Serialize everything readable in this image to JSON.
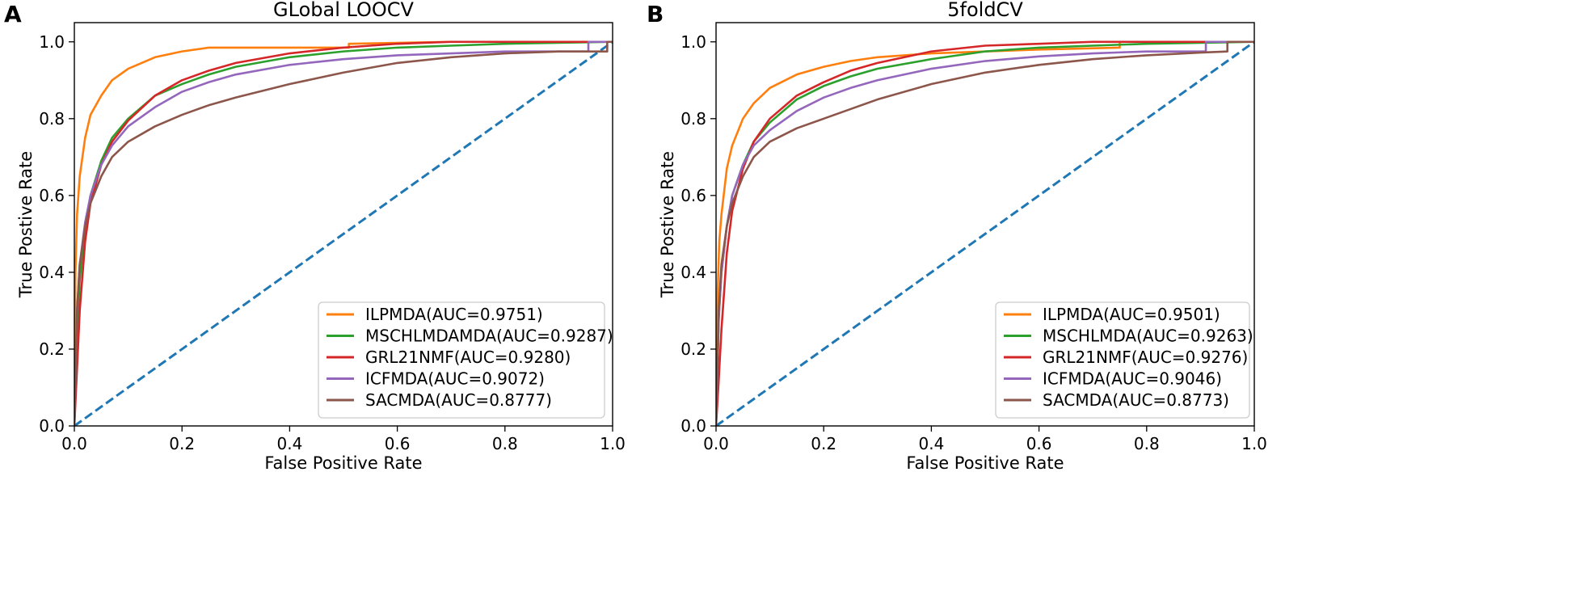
{
  "chart_data": [
    {
      "type": "line",
      "panel_label": "A",
      "title": "GLobal LOOCV",
      "xlabel": "False Positive Rate",
      "ylabel": "True Postive Rate",
      "xlim": [
        0,
        1
      ],
      "ylim": [
        0,
        1.05
      ],
      "xticks": [
        "0.0",
        "0.2",
        "0.4",
        "0.6",
        "0.8",
        "1.0"
      ],
      "yticks": [
        "0.0",
        "0.2",
        "0.4",
        "0.6",
        "0.8",
        "1.0"
      ],
      "legend_position": "lower-right",
      "series": [
        {
          "name": "ILPMDA(AUC=0.9751)",
          "color": "#ff7f0e",
          "x": [
            0,
            0.002,
            0.005,
            0.01,
            0.02,
            0.03,
            0.05,
            0.07,
            0.1,
            0.15,
            0.2,
            0.25,
            0.35,
            0.51,
            0.51,
            0.7,
            1.0
          ],
          "y": [
            0,
            0.4,
            0.55,
            0.65,
            0.75,
            0.81,
            0.86,
            0.9,
            0.93,
            0.96,
            0.975,
            0.985,
            0.985,
            0.985,
            0.995,
            1.0,
            1.0
          ]
        },
        {
          "name": "MSCHLMDAMDA(AUC=0.9287)",
          "color": "#2ca02c",
          "x": [
            0,
            0.005,
            0.01,
            0.02,
            0.03,
            0.05,
            0.07,
            0.1,
            0.15,
            0.2,
            0.25,
            0.3,
            0.4,
            0.5,
            0.6,
            0.7,
            0.8,
            1.0
          ],
          "y": [
            0,
            0.25,
            0.38,
            0.52,
            0.6,
            0.69,
            0.75,
            0.8,
            0.86,
            0.89,
            0.915,
            0.935,
            0.96,
            0.975,
            0.985,
            0.99,
            0.995,
            1.0
          ]
        },
        {
          "name": "GRL21NMF(AUC=0.9280)",
          "color": "#d62728",
          "x": [
            0,
            0.005,
            0.01,
            0.02,
            0.03,
            0.05,
            0.07,
            0.1,
            0.15,
            0.2,
            0.25,
            0.3,
            0.4,
            0.5,
            0.6,
            0.7,
            0.8,
            1.0
          ],
          "y": [
            0,
            0.15,
            0.3,
            0.48,
            0.58,
            0.68,
            0.74,
            0.795,
            0.86,
            0.9,
            0.925,
            0.945,
            0.97,
            0.985,
            0.995,
            1.0,
            1.0,
            1.0
          ]
        },
        {
          "name": "ICFMDA(AUC=0.9072)",
          "color": "#9467bd",
          "x": [
            0,
            0.005,
            0.01,
            0.02,
            0.03,
            0.05,
            0.07,
            0.1,
            0.15,
            0.2,
            0.25,
            0.3,
            0.4,
            0.5,
            0.6,
            0.7,
            0.8,
            0.955,
            0.955,
            1.0
          ],
          "y": [
            0,
            0.3,
            0.42,
            0.53,
            0.6,
            0.68,
            0.73,
            0.78,
            0.83,
            0.87,
            0.895,
            0.915,
            0.94,
            0.955,
            0.965,
            0.97,
            0.975,
            0.975,
            1.0,
            1.0
          ]
        },
        {
          "name": "SACMDA(AUC=0.8777)",
          "color": "#8c564b",
          "x": [
            0,
            0.005,
            0.01,
            0.02,
            0.03,
            0.05,
            0.07,
            0.1,
            0.15,
            0.2,
            0.25,
            0.3,
            0.4,
            0.5,
            0.6,
            0.7,
            0.8,
            0.9,
            0.99,
            0.99,
            1.0
          ],
          "y": [
            0,
            0.3,
            0.42,
            0.52,
            0.58,
            0.65,
            0.7,
            0.74,
            0.78,
            0.81,
            0.835,
            0.855,
            0.89,
            0.92,
            0.945,
            0.96,
            0.97,
            0.975,
            0.975,
            1.0,
            1.0
          ]
        },
        {
          "name": "",
          "color": "#1f77b4",
          "dashed": true,
          "x": [
            0,
            1
          ],
          "y": [
            0,
            1
          ]
        }
      ]
    },
    {
      "type": "line",
      "panel_label": "B",
      "title": "5foldCV",
      "xlabel": "False Positive Rate",
      "ylabel": "True Postive Rate",
      "xlim": [
        0,
        1
      ],
      "ylim": [
        0,
        1.05
      ],
      "xticks": [
        "0.0",
        "0.2",
        "0.4",
        "0.6",
        "0.8",
        "1.0"
      ],
      "yticks": [
        "0.0",
        "0.2",
        "0.4",
        "0.6",
        "0.8",
        "1.0"
      ],
      "legend_position": "lower-right",
      "series": [
        {
          "name": "ILPMDA(AUC=0.9501)",
          "color": "#ff7f0e",
          "x": [
            0,
            0.003,
            0.006,
            0.01,
            0.02,
            0.03,
            0.05,
            0.07,
            0.1,
            0.15,
            0.2,
            0.25,
            0.3,
            0.4,
            0.5,
            0.6,
            0.75,
            0.75,
            0.8,
            1.0
          ],
          "y": [
            0,
            0.35,
            0.48,
            0.55,
            0.67,
            0.73,
            0.8,
            0.84,
            0.88,
            0.915,
            0.935,
            0.95,
            0.96,
            0.97,
            0.975,
            0.98,
            0.985,
            1.0,
            1.0,
            1.0
          ]
        },
        {
          "name": "MSCHLMDA(AUC=0.9263)",
          "color": "#2ca02c",
          "x": [
            0,
            0.005,
            0.01,
            0.02,
            0.03,
            0.05,
            0.07,
            0.1,
            0.15,
            0.2,
            0.25,
            0.3,
            0.4,
            0.5,
            0.6,
            0.7,
            0.8,
            1.0
          ],
          "y": [
            0,
            0.28,
            0.4,
            0.52,
            0.6,
            0.68,
            0.74,
            0.79,
            0.85,
            0.885,
            0.91,
            0.93,
            0.955,
            0.975,
            0.985,
            0.99,
            0.995,
            1.0
          ]
        },
        {
          "name": "GRL21NMF(AUC=0.9276)",
          "color": "#d62728",
          "x": [
            0,
            0.005,
            0.01,
            0.02,
            0.03,
            0.05,
            0.07,
            0.1,
            0.15,
            0.2,
            0.25,
            0.3,
            0.4,
            0.5,
            0.6,
            0.7,
            0.8,
            1.0
          ],
          "y": [
            0,
            0.12,
            0.25,
            0.45,
            0.56,
            0.67,
            0.74,
            0.8,
            0.86,
            0.895,
            0.925,
            0.945,
            0.975,
            0.99,
            0.995,
            1.0,
            1.0,
            1.0
          ]
        },
        {
          "name": "ICFMDA(AUC=0.9046)",
          "color": "#9467bd",
          "x": [
            0,
            0.005,
            0.01,
            0.02,
            0.03,
            0.05,
            0.07,
            0.1,
            0.15,
            0.2,
            0.25,
            0.3,
            0.4,
            0.5,
            0.6,
            0.7,
            0.8,
            0.91,
            0.91,
            1.0
          ],
          "y": [
            0,
            0.28,
            0.4,
            0.52,
            0.6,
            0.68,
            0.73,
            0.77,
            0.82,
            0.855,
            0.88,
            0.9,
            0.93,
            0.95,
            0.962,
            0.97,
            0.975,
            0.975,
            1.0,
            1.0
          ]
        },
        {
          "name": "SACMDA(AUC=0.8773)",
          "color": "#8c564b",
          "x": [
            0,
            0.005,
            0.01,
            0.02,
            0.03,
            0.05,
            0.07,
            0.1,
            0.15,
            0.2,
            0.25,
            0.3,
            0.4,
            0.5,
            0.6,
            0.7,
            0.8,
            0.9,
            0.95,
            0.95,
            1.0
          ],
          "y": [
            0,
            0.3,
            0.42,
            0.52,
            0.58,
            0.65,
            0.7,
            0.74,
            0.775,
            0.8,
            0.825,
            0.85,
            0.89,
            0.92,
            0.94,
            0.955,
            0.965,
            0.972,
            0.975,
            1.0,
            1.0
          ]
        },
        {
          "name": "",
          "color": "#1f77b4",
          "dashed": true,
          "x": [
            0,
            1
          ],
          "y": [
            0,
            1
          ]
        }
      ]
    }
  ]
}
